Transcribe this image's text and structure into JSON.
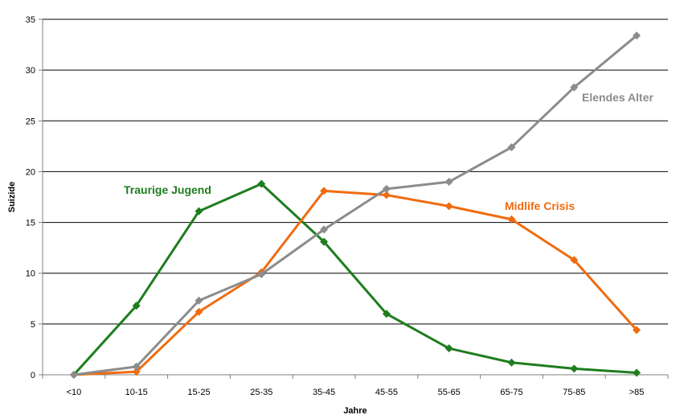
{
  "chart_data": {
    "type": "line",
    "title": "",
    "xlabel": "Jahre",
    "ylabel": "Suizide",
    "ylim": [
      0,
      35
    ],
    "yticks": [
      0,
      5,
      10,
      15,
      20,
      25,
      30,
      35
    ],
    "categories": [
      "<10",
      "10-15",
      "15-25",
      "25-35",
      "35-45",
      "45-55",
      "55-65",
      "65-75",
      "75-85",
      ">85"
    ],
    "grid": "horizontal",
    "legend": "none (series labeled inline)",
    "series": [
      {
        "name": "Traurige Jugend",
        "color": "#1e7d1e",
        "values": [
          0,
          6.8,
          16.1,
          18.8,
          13.1,
          6.0,
          2.6,
          1.2,
          0.6,
          0.2
        ]
      },
      {
        "name": "Midlife Crisis",
        "color": "#ef6c10",
        "values": [
          0,
          0.3,
          6.2,
          10.1,
          18.1,
          17.7,
          16.6,
          15.3,
          11.3,
          4.4
        ]
      },
      {
        "name": "Elendes Alter",
        "color": "#8c8c8c",
        "values": [
          0,
          0.8,
          7.3,
          9.9,
          14.3,
          18.3,
          19.0,
          22.4,
          28.3,
          33.4
        ]
      }
    ]
  }
}
